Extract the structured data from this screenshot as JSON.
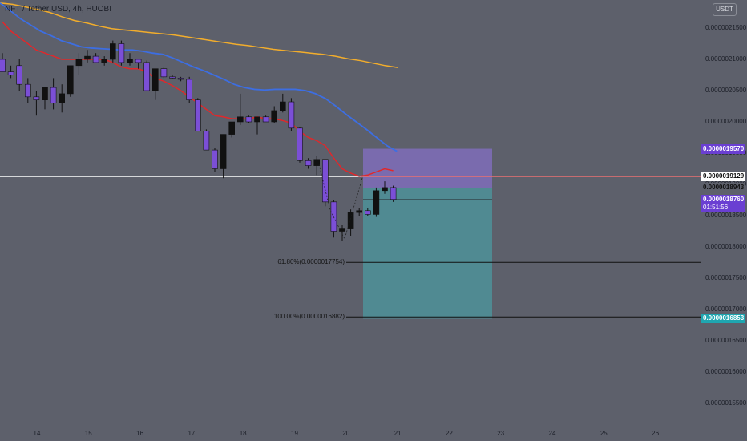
{
  "header": {
    "title": "NFT / Tether USD, 4h, HUOBI",
    "currency": "USDT"
  },
  "colors": {
    "background": "#5d606b",
    "candle_up": "#111111",
    "candle_down": "#7b4fd6",
    "ema_red": "#e0282b",
    "ema_blue": "#3d6ee2",
    "ema_orange": "#f2ad2c",
    "target_zone": "#4f8c95",
    "stop_zone": "#7b6bb2"
  },
  "chart_data": {
    "type": "candlestick",
    "symbol": "NFT / Tether USD",
    "interval": "4h",
    "exchange": "HUOBI",
    "y_ticks": [
      "0.0000021500",
      "0.0000021000",
      "0.0000020500",
      "0.0000020000",
      "0.0000019500",
      "0.0000019000",
      "0.0000018500",
      "0.0000018000",
      "0.0000017500",
      "0.0000017000",
      "0.0000016500",
      "0.0000016000",
      "0.0000015500"
    ],
    "x_ticks": [
      "14",
      "15",
      "16",
      "17",
      "18",
      "19",
      "20",
      "21",
      "22",
      "23",
      "24",
      "25",
      "26"
    ],
    "price_badges": [
      {
        "label": "0.0000019570",
        "role": "stop-loss"
      },
      {
        "label": "0.0000019129",
        "role": "horizontal-line"
      },
      {
        "label": "0.0000018943",
        "role": "high"
      },
      {
        "label": "0.0000018760",
        "countdown": "01:51:56",
        "role": "current-price"
      },
      {
        "label": "0.0000016853",
        "role": "take-profit"
      }
    ],
    "fib_levels": [
      {
        "label": "61.80%(0.0000017754)",
        "price": 1.7754e-06
      },
      {
        "label": "100.00%(0.0000016882)",
        "price": 1.6882e-06
      }
    ],
    "horizontal_line": 1.9129e-06,
    "position": {
      "entry": 1.8943e-06,
      "stop": 1.957e-06,
      "target": 1.6853e-06
    },
    "candles": [
      {
        "t": 0,
        "o": 2.1e-06,
        "h": 2.11e-06,
        "l": 2.08e-06,
        "c": 2.08e-06
      },
      {
        "t": 1,
        "o": 2.08e-06,
        "h": 2.09e-06,
        "l": 2.07e-06,
        "c": 2.075e-06
      },
      {
        "t": 2,
        "o": 2.09e-06,
        "h": 2.1e-06,
        "l": 2.05e-06,
        "c": 2.06e-06
      },
      {
        "t": 3,
        "o": 2.06e-06,
        "h": 2.07e-06,
        "l": 2.03e-06,
        "c": 2.04e-06
      },
      {
        "t": 4,
        "o": 2.04e-06,
        "h": 2.05e-06,
        "l": 2.01e-06,
        "c": 2.035e-06
      },
      {
        "t": 5,
        "o": 2.035e-06,
        "h": 2.055e-06,
        "l": 2.02e-06,
        "c": 2.055e-06
      },
      {
        "t": 6,
        "o": 2.055e-06,
        "h": 2.07e-06,
        "l": 2.02e-06,
        "c": 2.03e-06
      },
      {
        "t": 7,
        "o": 2.03e-06,
        "h": 2.06e-06,
        "l": 2.015e-06,
        "c": 2.045e-06
      },
      {
        "t": 8,
        "o": 2.045e-06,
        "h": 2.09e-06,
        "l": 2.04e-06,
        "c": 2.09e-06
      },
      {
        "t": 9,
        "o": 2.09e-06,
        "h": 2.11e-06,
        "l": 2.075e-06,
        "c": 2.1e-06
      },
      {
        "t": 10,
        "o": 2.1e-06,
        "h": 2.115e-06,
        "l": 2.095e-06,
        "c": 2.105e-06
      },
      {
        "t": 11,
        "o": 2.105e-06,
        "h": 2.11e-06,
        "l": 2.095e-06,
        "c": 2.095e-06
      },
      {
        "t": 12,
        "o": 2.095e-06,
        "h": 2.105e-06,
        "l": 2.09e-06,
        "c": 2.1e-06
      },
      {
        "t": 13,
        "o": 2.1e-06,
        "h": 2.13e-06,
        "l": 2.095e-06,
        "c": 2.125e-06
      },
      {
        "t": 14,
        "o": 2.125e-06,
        "h": 2.13e-06,
        "l": 2.09e-06,
        "c": 2.095e-06
      },
      {
        "t": 15,
        "o": 2.095e-06,
        "h": 2.11e-06,
        "l": 2.09e-06,
        "c": 2.1e-06
      },
      {
        "t": 16,
        "o": 2.1e-06,
        "h": 2.1e-06,
        "l": 2.085e-06,
        "c": 2.095e-06
      },
      {
        "t": 17,
        "o": 2.095e-06,
        "h": 2.098e-06,
        "l": 2.05e-06,
        "c": 2.05e-06
      },
      {
        "t": 18,
        "o": 2.05e-06,
        "h": 2.085e-06,
        "l": 2.035e-06,
        "c": 2.085e-06
      },
      {
        "t": 19,
        "o": 2.085e-06,
        "h": 2.088e-06,
        "l": 2.07e-06,
        "c": 2.072e-06
      },
      {
        "t": 20,
        "o": 2.072e-06,
        "h": 2.075e-06,
        "l": 2.068e-06,
        "c": 2.07e-06
      },
      {
        "t": 21,
        "o": 2.07e-06,
        "h": 2.072e-06,
        "l": 2.065e-06,
        "c": 2.068e-06
      },
      {
        "t": 22,
        "o": 2.068e-06,
        "h": 2.072e-06,
        "l": 2.03e-06,
        "c": 2.035e-06
      },
      {
        "t": 23,
        "o": 2.035e-06,
        "h": 2.038e-06,
        "l": 1.985e-06,
        "c": 1.985e-06
      },
      {
        "t": 24,
        "o": 1.985e-06,
        "h": 1.988e-06,
        "l": 1.955e-06,
        "c": 1.955e-06
      },
      {
        "t": 25,
        "o": 1.955e-06,
        "h": 1.958e-06,
        "l": 1.92e-06,
        "c": 1.925e-06
      },
      {
        "t": 26,
        "o": 1.925e-06,
        "h": 1.98e-06,
        "l": 1.91e-06,
        "c": 1.98e-06
      },
      {
        "t": 27,
        "o": 1.98e-06,
        "h": 2e-06,
        "l": 1.975e-06,
        "c": 2e-06
      },
      {
        "t": 28,
        "o": 2e-06,
        "h": 2.045e-06,
        "l": 1.995e-06,
        "c": 2.008e-06
      },
      {
        "t": 29,
        "o": 2.008e-06,
        "h": 2.01e-06,
        "l": 1.998e-06,
        "c": 2e-06
      },
      {
        "t": 30,
        "o": 2e-06,
        "h": 2.008e-06,
        "l": 1.98e-06,
        "c": 2.008e-06
      },
      {
        "t": 31,
        "o": 2.008e-06,
        "h": 2.01e-06,
        "l": 2e-06,
        "c": 2e-06
      },
      {
        "t": 32,
        "o": 2e-06,
        "h": 2.025e-06,
        "l": 1.998e-06,
        "c": 2.018e-06
      },
      {
        "t": 33,
        "o": 2.018e-06,
        "h": 2.045e-06,
        "l": 2.015e-06,
        "c": 2.032e-06
      },
      {
        "t": 34,
        "o": 2.032e-06,
        "h": 2.038e-06,
        "l": 1.985e-06,
        "c": 1.99e-06
      },
      {
        "t": 35,
        "o": 1.99e-06,
        "h": 1.992e-06,
        "l": 1.935e-06,
        "c": 1.938e-06
      },
      {
        "t": 36,
        "o": 1.938e-06,
        "h": 1.942e-06,
        "l": 1.925e-06,
        "c": 1.93e-06
      },
      {
        "t": 37,
        "o": 1.93e-06,
        "h": 1.945e-06,
        "l": 1.915e-06,
        "c": 1.94e-06
      },
      {
        "t": 38,
        "o": 1.94e-06,
        "h": 1.94e-06,
        "l": 1.865e-06,
        "c": 1.872e-06
      },
      {
        "t": 39,
        "o": 1.872e-06,
        "h": 1.875e-06,
        "l": 1.815e-06,
        "c": 1.825e-06
      },
      {
        "t": 40,
        "o": 1.825e-06,
        "h": 1.835e-06,
        "l": 1.81e-06,
        "c": 1.83e-06
      },
      {
        "t": 41,
        "o": 1.83e-06,
        "h": 1.86e-06,
        "l": 1.818e-06,
        "c": 1.855e-06
      },
      {
        "t": 42,
        "o": 1.855e-06,
        "h": 1.862e-06,
        "l": 1.85e-06,
        "c": 1.858e-06
      },
      {
        "t": 43,
        "o": 1.858e-06,
        "h": 1.862e-06,
        "l": 1.85e-06,
        "c": 1.852e-06
      },
      {
        "t": 44,
        "o": 1.852e-06,
        "h": 1.895e-06,
        "l": 1.848e-06,
        "c": 1.89e-06
      },
      {
        "t": 45,
        "o": 1.89e-06,
        "h": 1.905e-06,
        "l": 1.885e-06,
        "c": 1.895e-06
      },
      {
        "t": 46,
        "o": 1.895e-06,
        "h": 1.898e-06,
        "l": 1.872e-06,
        "c": 1.876e-06
      }
    ],
    "ema_red": [
      2.16e-06,
      2.145e-06,
      2.135e-06,
      2.125e-06,
      2.115e-06,
      2.11e-06,
      2.105e-06,
      2.1e-06,
      2.1e-06,
      2.1e-06,
      2.1e-06,
      2.1e-06,
      2.1e-06,
      2.095e-06,
      2.088e-06,
      2.085e-06,
      2.085e-06,
      2.08e-06,
      2.07e-06,
      2.065e-06,
      2.058e-06,
      2.05e-06,
      2.04e-06,
      2.03e-06,
      2.02e-06,
      2.01e-06,
      2.008e-06,
      2.005e-06,
      2.005e-06,
      2.005e-06,
      2.008e-06,
      2.005e-06,
      2.005e-06,
      2.002e-06,
      1.998e-06,
      1.985e-06,
      1.975e-06,
      1.97e-06,
      1.962e-06,
      1.942e-06,
      1.925e-06,
      1.918e-06,
      1.913e-06,
      1.915e-06,
      1.92e-06,
      1.925e-06,
      1.922e-06
    ],
    "ema_blue": [
      2.19e-06,
      2.178e-06,
      2.165e-06,
      2.155e-06,
      2.145e-06,
      2.138e-06,
      2.13e-06,
      2.125e-06,
      2.12e-06,
      2.118e-06,
      2.117e-06,
      2.116e-06,
      2.115e-06,
      2.115e-06,
      2.113e-06,
      2.11e-06,
      2.108e-06,
      2.102e-06,
      2.095e-06,
      2.088e-06,
      2.082e-06,
      2.075e-06,
      2.068e-06,
      2.06e-06,
      2.055e-06,
      2.052e-06,
      2.051e-06,
      2.052e-06,
      2.052e-06,
      2.052e-06,
      2.05e-06,
      2.045e-06,
      2.037e-06,
      2.025e-06,
      2.012e-06,
      2e-06,
      1.988e-06,
      1.975e-06,
      1.962e-06,
      1.953e-06
    ],
    "ema_orange": [
      2.19e-06,
      2.188e-06,
      2.184e-06,
      2.18e-06,
      2.175e-06,
      2.168e-06,
      2.162e-06,
      2.158e-06,
      2.153e-06,
      2.149e-06,
      2.147e-06,
      2.145e-06,
      2.143e-06,
      2.141e-06,
      2.139e-06,
      2.136e-06,
      2.133e-06,
      2.13e-06,
      2.127e-06,
      2.124e-06,
      2.122e-06,
      2.119e-06,
      2.116e-06,
      2.114e-06,
      2.112e-06,
      2.11e-06,
      2.108e-06,
      2.105e-06,
      2.101e-06,
      2.098e-06,
      2.094e-06,
      2.09e-06,
      2.087e-06
    ]
  }
}
